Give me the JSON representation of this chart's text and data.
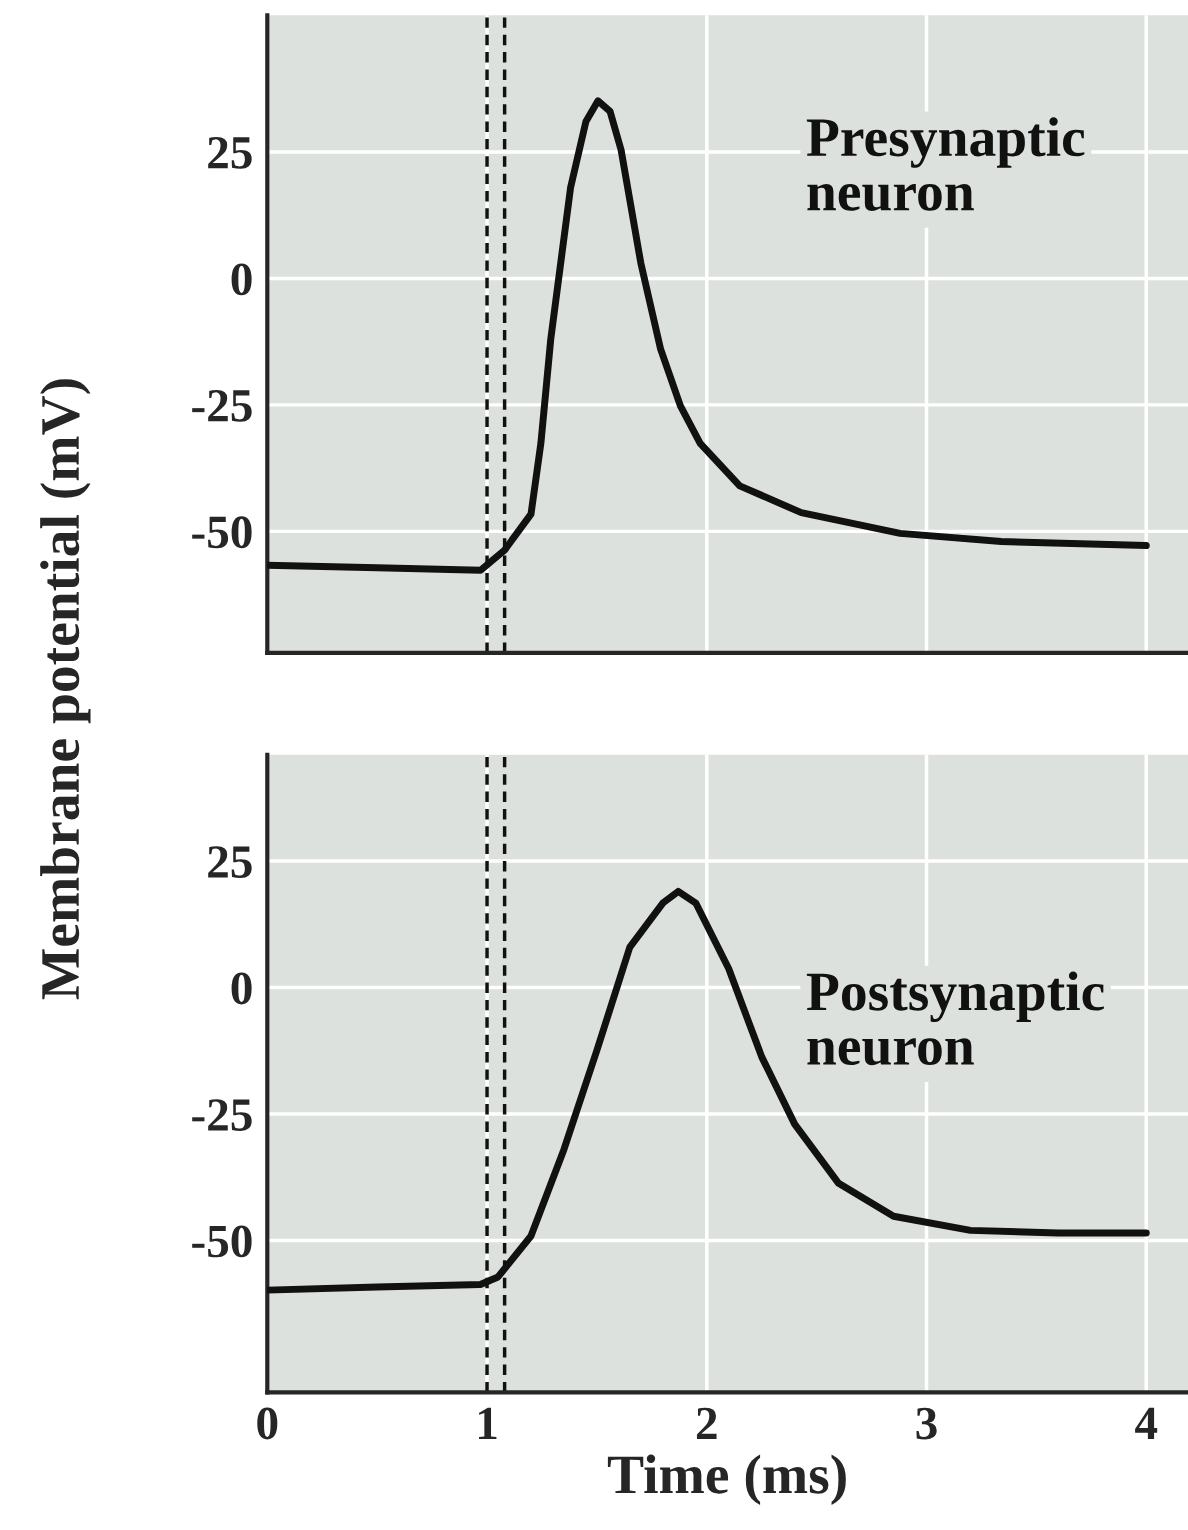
{
  "chart_data": [
    {
      "type": "line",
      "ylabel": "Membrane potential (mV)",
      "xlim": [
        0,
        4.19
      ],
      "ylim": [
        -74,
        52
      ],
      "xticks": [
        0,
        1,
        2,
        3,
        4
      ],
      "yticks": [
        -50,
        -25,
        0,
        25
      ],
      "tick_labels": "y",
      "grid": true,
      "line_style": "solid",
      "series": [
        {
          "name": "Presynaptic\nneuron",
          "color": "#111111",
          "x": [
            0,
            0.5,
            0.97,
            1.08,
            1.2,
            1.245,
            1.29,
            1.38,
            1.45,
            1.505,
            1.56,
            1.61,
            1.7,
            1.79,
            1.88,
            1.97,
            2.15,
            2.43,
            2.88,
            3.34,
            4
          ],
          "values": [
            -56.7,
            -57.2,
            -57.7,
            -53.7,
            -46.6,
            -32.6,
            -12,
            17.9,
            31,
            35.1,
            33,
            25.4,
            3,
            -14,
            -25.2,
            -32.6,
            -41,
            -46.3,
            -50.4,
            -52,
            -52.8
          ]
        }
      ],
      "ref_lines": [
        {
          "axis": "x",
          "value": 1.0,
          "line_style": "dashed",
          "color": "#111111"
        },
        {
          "axis": "x",
          "value": 1.08,
          "line_style": "dashed",
          "color": "#111111"
        }
      ]
    },
    {
      "type": "line",
      "xlabel": "Time (ms)",
      "xlim": [
        0,
        4.19
      ],
      "ylim": [
        -80,
        46
      ],
      "xticks": [
        0,
        1,
        2,
        3,
        4
      ],
      "yticks": [
        -50,
        -25,
        0,
        25
      ],
      "grid": true,
      "line_style": "solid",
      "series": [
        {
          "name": "Postsynaptic\nneuron",
          "color": "#111111",
          "x": [
            0,
            0.5,
            0.97,
            1.05,
            1.2,
            1.35,
            1.5,
            1.65,
            1.8,
            1.87,
            1.95,
            2.1,
            2.25,
            2.4,
            2.6,
            2.85,
            3.2,
            3.6,
            4
          ],
          "values": [
            -59.8,
            -59.2,
            -58.7,
            -57.2,
            -49.1,
            -32,
            -12.4,
            8,
            16.7,
            19,
            16.7,
            3.7,
            -13.7,
            -27,
            -38.7,
            -45.2,
            -48,
            -48.5,
            -48.5
          ]
        }
      ],
      "ref_lines": [
        {
          "axis": "x",
          "value": 1.0,
          "line_style": "dashed",
          "color": "#111111"
        },
        {
          "axis": "x",
          "value": 1.08,
          "line_style": "dashed",
          "color": "#111111"
        }
      ]
    }
  ]
}
